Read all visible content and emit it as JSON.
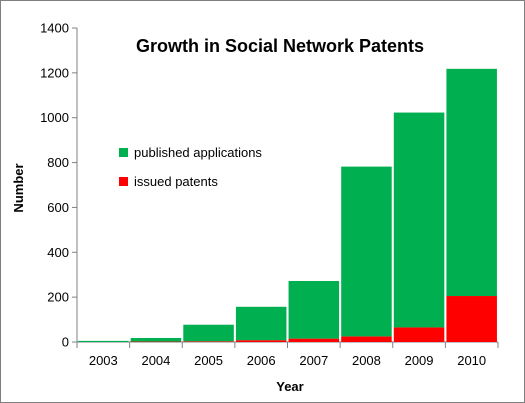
{
  "chart_data": {
    "type": "bar",
    "stacked": true,
    "title": "Growth in Social Network Patents",
    "xlabel": "Year",
    "ylabel": "Number",
    "categories": [
      "2003",
      "2004",
      "2005",
      "2006",
      "2007",
      "2008",
      "2009",
      "2010"
    ],
    "series": [
      {
        "name": "issued patents",
        "color": "#ff0000",
        "values": [
          0,
          2,
          3,
          8,
          15,
          25,
          65,
          205
        ]
      },
      {
        "name": "published applications",
        "color": "#00b050",
        "values": [
          5,
          16,
          74,
          149,
          257,
          757,
          958,
          1013
        ]
      }
    ],
    "ylim": [
      0,
      1400
    ],
    "yticks": [
      0,
      200,
      400,
      600,
      800,
      1000,
      1200,
      1400
    ],
    "grid": false,
    "legend_position": "left",
    "legend_order": [
      "published applications",
      "issued patents"
    ]
  }
}
